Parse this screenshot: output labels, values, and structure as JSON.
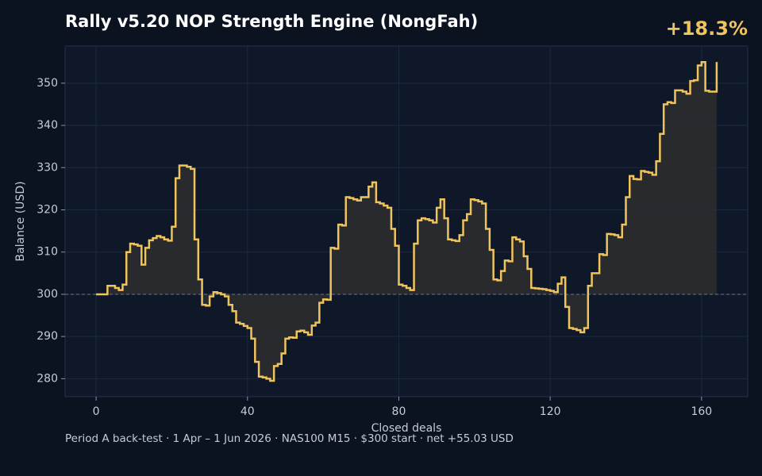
{
  "chart_data": {
    "type": "step",
    "title": "Rally v5.20 NOP Strength Engine (NongFah)",
    "badge": "+18.3%",
    "y_label": "Balance (USD)",
    "x_label": "Closed deals",
    "footer": "Period A back-test  ·  1 Apr – 1 Jun 2026  ·  NAS100 M15  ·  $300 start  ·  net +55.03 USD",
    "color": "#f0c45c",
    "baseline": 300,
    "values": [
      300,
      300,
      300,
      302,
      302,
      301.5,
      301,
      302.3,
      310,
      312,
      311.8,
      311.5,
      307,
      311,
      312.8,
      313.3,
      313.8,
      313.5,
      313,
      312.7,
      316,
      327.5,
      330.5,
      330.5,
      330.2,
      329.7,
      313,
      303.5,
      297.5,
      297.3,
      299.5,
      300.5,
      300.3,
      300,
      299.5,
      297.5,
      296,
      293.3,
      293,
      292.5,
      292,
      289.5,
      284,
      280.5,
      280.3,
      280,
      279.5,
      283,
      283.5,
      286,
      289.5,
      289.8,
      289.7,
      291.2,
      291.4,
      291,
      290.4,
      292.6,
      293.3,
      298,
      298.8,
      298.7,
      311,
      310.8,
      316.5,
      316.3,
      323,
      322.8,
      322.5,
      322.2,
      323,
      323,
      325.5,
      326.5,
      321.8,
      321.5,
      321,
      320.5,
      315.5,
      311.5,
      302.3,
      302,
      301.5,
      301,
      312,
      317.5,
      318,
      317.8,
      317.5,
      317,
      320.5,
      322.5,
      318,
      313,
      312.8,
      312.6,
      314,
      317.5,
      319,
      322.5,
      322.3,
      322,
      321.5,
      315.5,
      310.5,
      303.5,
      303.3,
      305.5,
      308,
      307.8,
      313.5,
      313,
      312.5,
      309,
      306,
      301.5,
      301.4,
      301.3,
      301.2,
      301,
      300.8,
      300.5,
      302.5,
      304,
      297,
      292,
      291.8,
      291.5,
      291,
      292,
      302,
      305,
      305,
      309.5,
      309.3,
      314.3,
      314.2,
      314,
      313.5,
      316.5,
      323,
      328,
      327.3,
      327.2,
      329.2,
      329,
      328.8,
      328.3,
      331.5,
      338,
      345,
      345.5,
      345.3,
      348.3,
      348.3,
      348,
      347.5,
      350.5,
      350.7,
      354.2,
      355,
      348.2,
      348,
      348,
      355.03
    ],
    "xlim": [
      -8.2,
      172.2
    ],
    "ylim": [
      275.75,
      358.8
    ],
    "xticks": [
      0,
      40,
      80,
      120,
      160
    ],
    "yticks": [
      280,
      290,
      300,
      310,
      320,
      330,
      340,
      350
    ],
    "grid": true
  }
}
